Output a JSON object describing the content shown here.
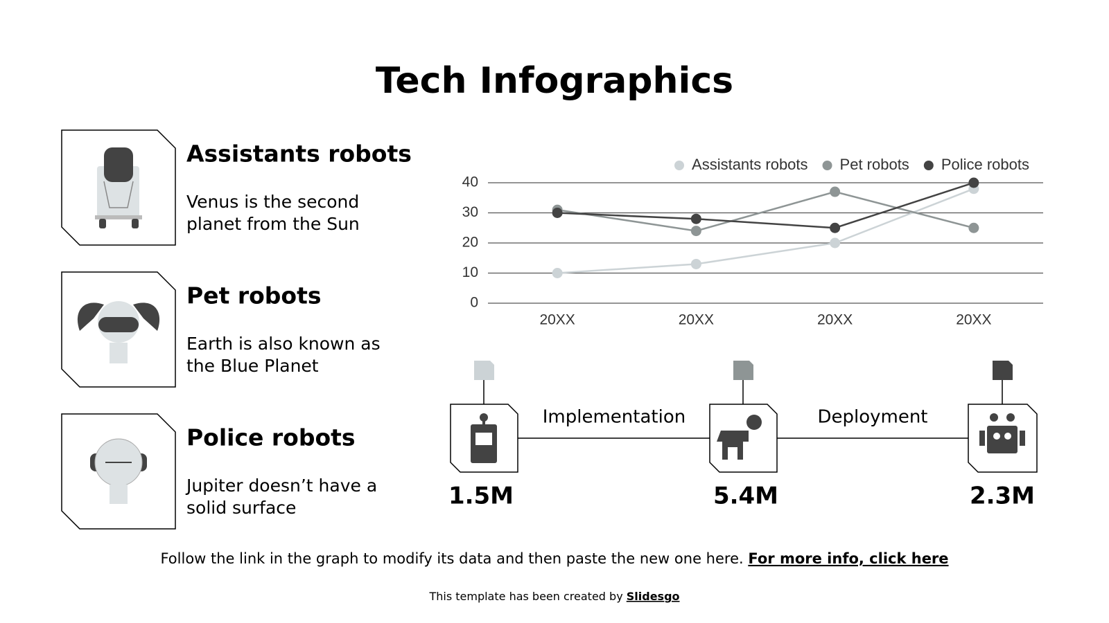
{
  "title": "Tech Infographics",
  "items": [
    {
      "title": "Assistants robots",
      "text": [
        "Venus is the second",
        "planet from the Sun"
      ]
    },
    {
      "title": "Pet robots",
      "text": [
        "Earth is also known as",
        "the Blue Planet"
      ]
    },
    {
      "title": "Police robots",
      "text": [
        "Jupiter doesn’t have a",
        "solid surface"
      ]
    }
  ],
  "chart_data": {
    "type": "line",
    "categories": [
      "20XX",
      "20XX",
      "20XX",
      "20XX"
    ],
    "series": [
      {
        "name": "Assistants robots",
        "color": "#ccd3d6",
        "values": [
          10,
          13,
          20,
          38
        ]
      },
      {
        "name": "Pet robots",
        "color": "#8e9595",
        "values": [
          31,
          24,
          37,
          25
        ]
      },
      {
        "name": "Police robots",
        "color": "#434343",
        "values": [
          30,
          28,
          25,
          40
        ]
      }
    ],
    "ylim": [
      0,
      40
    ],
    "yticks": [
      0,
      10,
      20,
      30,
      40
    ],
    "grid": true,
    "legend": "top"
  },
  "timeline": {
    "labels": [
      "Implementation",
      "Deployment"
    ],
    "values": [
      "1.5M",
      "5.4M",
      "2.3M"
    ]
  },
  "footer": {
    "text": "Follow the link in the graph to modify its data and then paste the new one here.",
    "link": "For more info, click here"
  },
  "credit": {
    "text": "This template has been created by",
    "link": "Slidesgo"
  }
}
